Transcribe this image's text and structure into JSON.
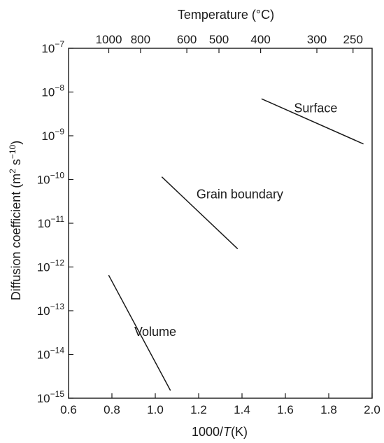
{
  "chart_data": {
    "type": "line",
    "title": "",
    "xlabel": {
      "prefix": "1000/",
      "italic": "T",
      "suffix": "(K)"
    },
    "ylabel": {
      "text": "Diffusion coefficient (m",
      "sup1": "2",
      "mid": " s",
      "sup2": "−10",
      "end": ")"
    },
    "top_axis_label": "Temperature (°C)",
    "xlim": [
      0.6,
      2.0
    ],
    "ylim": [
      -15,
      -7
    ],
    "y_scale": "log",
    "grid": false,
    "x_ticks": [
      "0.6",
      "0.8",
      "1.0",
      "1.2",
      "1.4",
      "1.6",
      "1.8",
      "2.0"
    ],
    "y_ticks": [
      {
        "exp": -7,
        "base": "10",
        "sup": "−7"
      },
      {
        "exp": -8,
        "base": "10",
        "sup": "−8"
      },
      {
        "exp": -9,
        "base": "10",
        "sup": "−9"
      },
      {
        "exp": -10,
        "base": "10",
        "sup": "−10"
      },
      {
        "exp": -11,
        "base": "10",
        "sup": "−11"
      },
      {
        "exp": -12,
        "base": "10",
        "sup": "−12"
      },
      {
        "exp": -13,
        "base": "10",
        "sup": "−13"
      },
      {
        "exp": -14,
        "base": "10",
        "sup": "−14"
      },
      {
        "exp": -15,
        "base": "10",
        "sup": "−15"
      }
    ],
    "top_ticks": [
      {
        "label": "1000",
        "celsius": 1000
      },
      {
        "label": "800",
        "celsius": 800
      },
      {
        "label": "600",
        "celsius": 600
      },
      {
        "label": "500",
        "celsius": 500
      },
      {
        "label": "400",
        "celsius": 400
      },
      {
        "label": "300",
        "celsius": 300
      },
      {
        "label": "250",
        "celsius": 250
      }
    ],
    "series": [
      {
        "name": "Surface",
        "points": [
          [
            1.49,
            7e-09
          ],
          [
            1.96,
            6.5e-10
          ]
        ],
        "label_at": [
          1.74,
          4.3e-09
        ]
      },
      {
        "name": "Grain boundary",
        "points": [
          [
            1.03,
            1.15e-10
          ],
          [
            1.38,
            2.6e-12
          ]
        ],
        "label_at": [
          1.39,
          4.6e-11
        ]
      },
      {
        "name": "Volume",
        "points": [
          [
            0.785,
            6.5e-13
          ],
          [
            1.07,
            1.5e-15
          ]
        ],
        "label_at": [
          1.0,
          3.3e-14
        ]
      }
    ]
  }
}
